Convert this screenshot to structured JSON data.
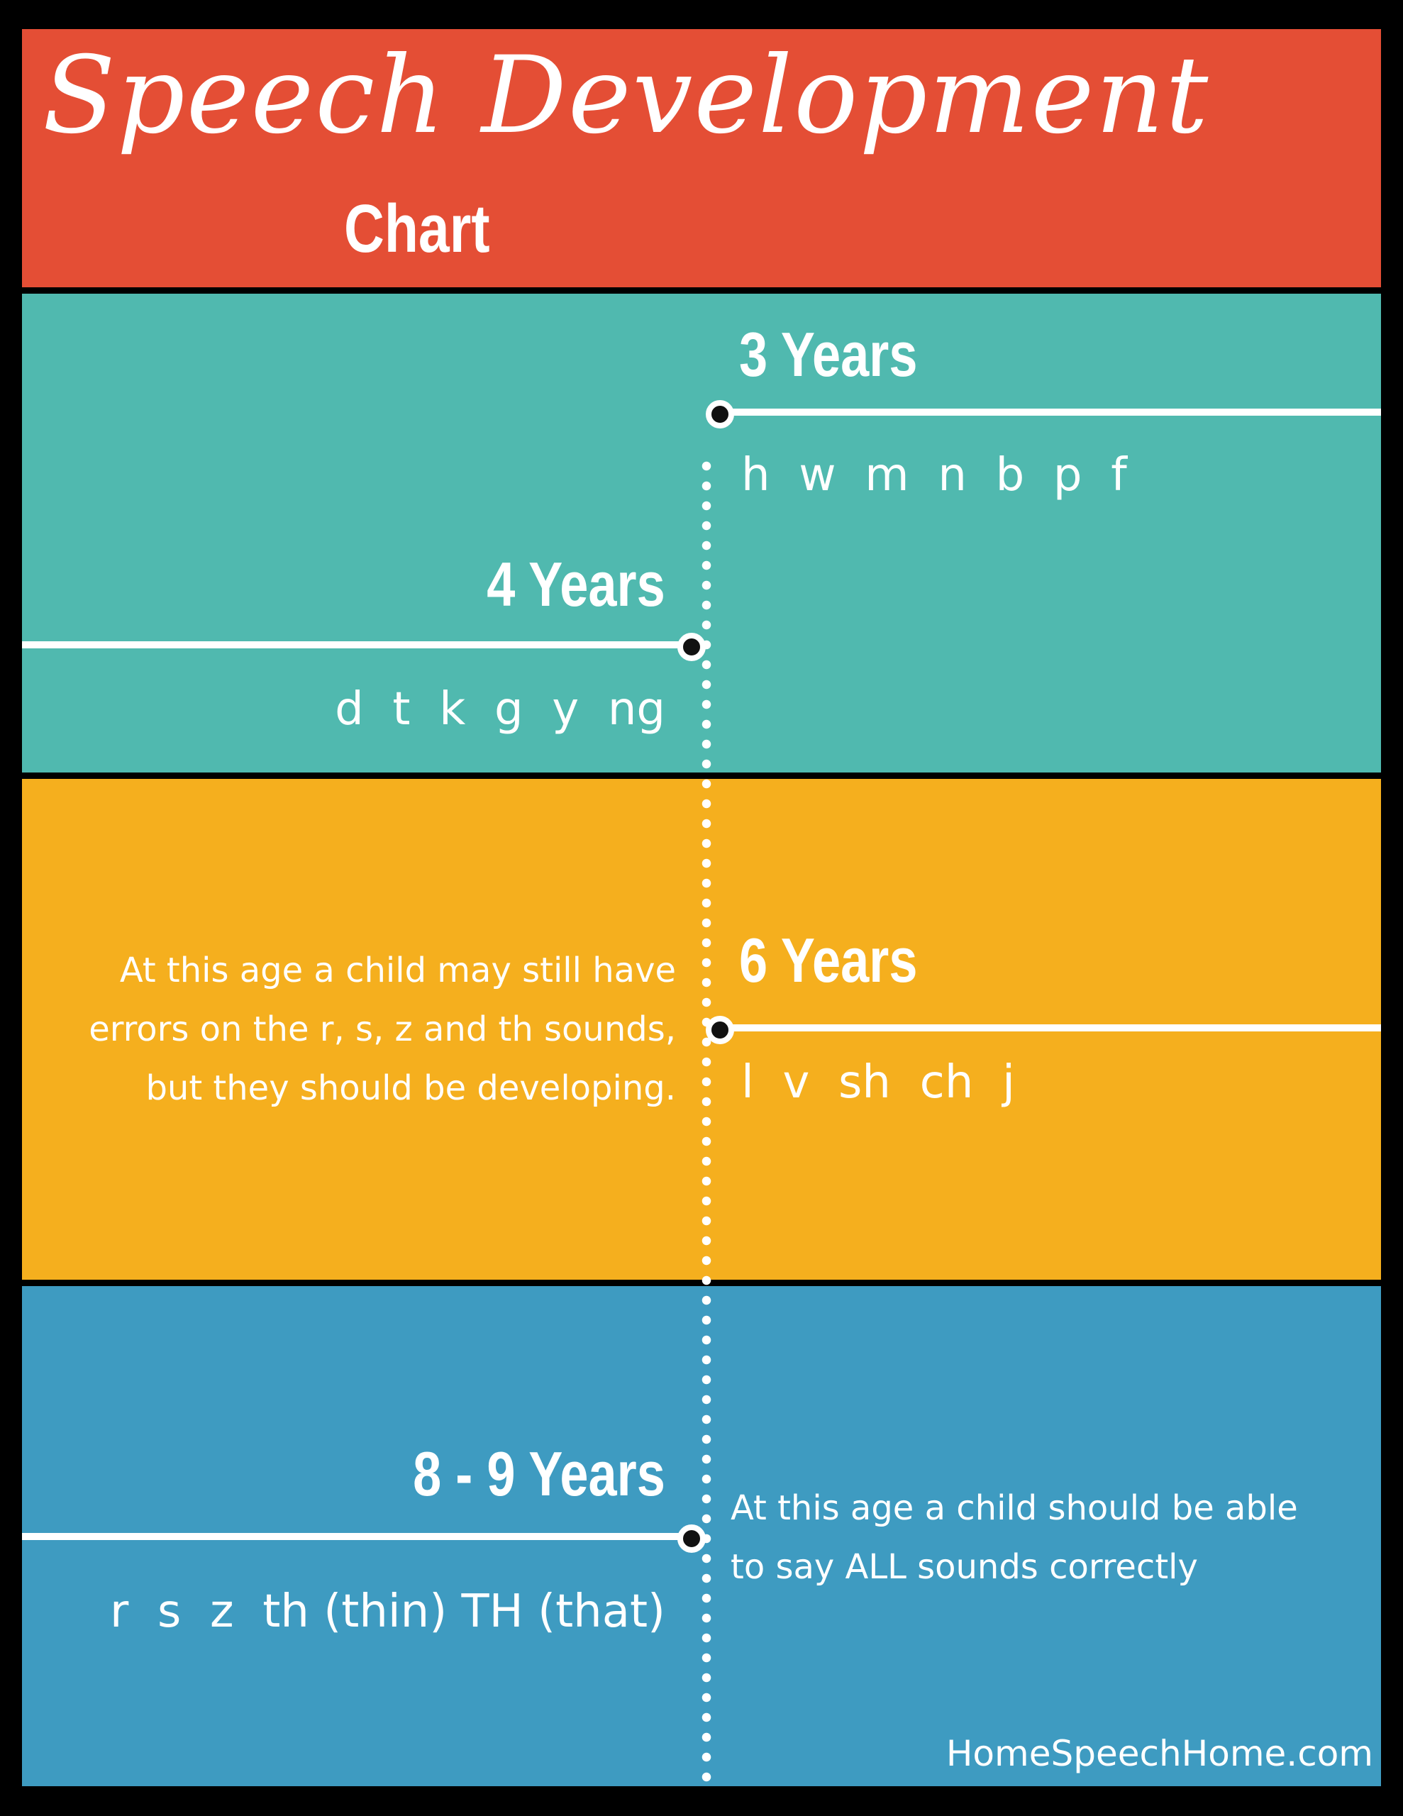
{
  "colors": {
    "header": "#E44E35",
    "teal": "#50B9AF",
    "orange": "#F5AF1E",
    "blue": "#3E9BC1",
    "background": "#000000",
    "text": "#FFFFFF"
  },
  "header": {
    "title_script": "Speech Development",
    "title_block": "Chart"
  },
  "milestones": [
    {
      "age": "3 Years",
      "sounds": "h  w  m  n  b  p  f"
    },
    {
      "age": "4 Years",
      "sounds": "d  t  k  g  y  ng"
    },
    {
      "age": "6 Years",
      "sounds": "l  v  sh  ch  j"
    },
    {
      "age": "8 - 9 Years",
      "sounds": "r  s  z  th (thin) TH (that)"
    }
  ],
  "notes": {
    "six_years": [
      "At this age a child may still have",
      "errors on the r, s, z and th sounds,",
      "but they should be developing."
    ],
    "eight_nine_years": [
      "At this age a child should be able",
      "to say ALL sounds correctly"
    ]
  },
  "footer": "HomeSpeechHome.com"
}
